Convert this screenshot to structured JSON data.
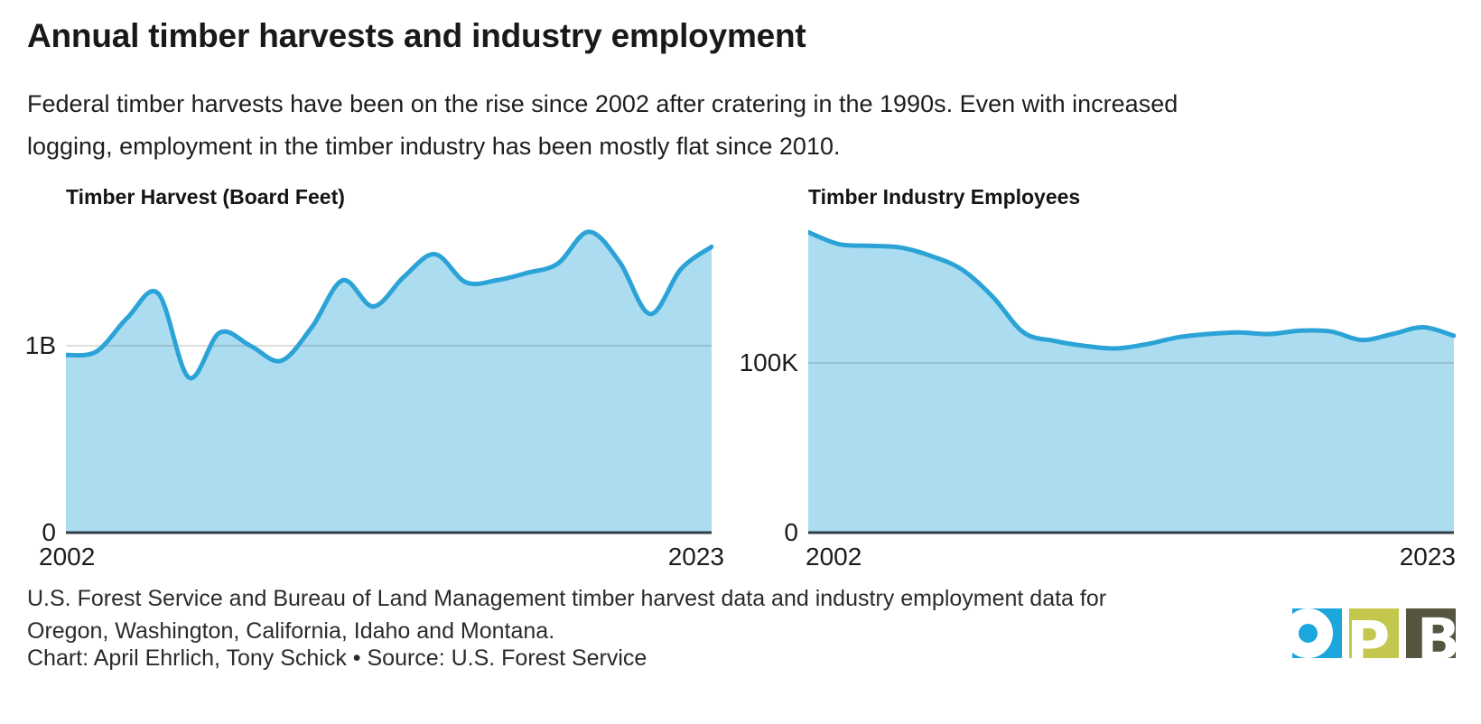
{
  "header": {
    "title": "Annual timber harvests and industry employment",
    "description_line1": "Federal timber harvests have been on the rise since 2002 after cratering in the 1990s. Even with increased",
    "description_line2": "logging, employment in the timber industry has been mostly flat since 2010."
  },
  "colors": {
    "line": "#2CA3D7",
    "fill": "#ABDCF0",
    "grid": "rgba(0,0,0,0.16)",
    "axis": "#333F48",
    "logo_blue": "#1BA7DC",
    "logo_olive": "#C3C74D",
    "logo_dark": "#555540"
  },
  "chart_data": [
    {
      "type": "area",
      "title": "Timber Harvest (Board Feet)",
      "unit": "billion board feet",
      "x_range": [
        2002,
        2023
      ],
      "x_label_left": "2002",
      "x_label_right": "2023",
      "y_grid_label": "1B",
      "y_grid_value": 1.0,
      "y_zero_label": "0",
      "grid_on": true,
      "legend": "none",
      "years": [
        2002,
        2003,
        2004,
        2005,
        2006,
        2007,
        2008,
        2009,
        2010,
        2011,
        2012,
        2013,
        2014,
        2015,
        2016,
        2017,
        2018,
        2019,
        2020,
        2021,
        2022,
        2023
      ],
      "values": [
        0.95,
        0.97,
        1.15,
        1.28,
        0.83,
        1.07,
        1.0,
        0.92,
        1.1,
        1.35,
        1.21,
        1.37,
        1.49,
        1.34,
        1.35,
        1.39,
        1.44,
        1.61,
        1.45,
        1.17,
        1.41,
        1.53
      ]
    },
    {
      "type": "area",
      "title": "Timber Industry Employees",
      "unit": "thousand employees",
      "x_range": [
        2002,
        2023
      ],
      "x_label_left": "2002",
      "x_label_right": "2023",
      "y_grid_label": "100K",
      "y_grid_value": 100,
      "y_zero_label": "0",
      "grid_on": true,
      "legend": "none",
      "years": [
        2002,
        2003,
        2004,
        2005,
        2006,
        2007,
        2008,
        2009,
        2010,
        2011,
        2012,
        2013,
        2014,
        2015,
        2016,
        2017,
        2018,
        2019,
        2020,
        2021,
        2022,
        2023
      ],
      "values": [
        177,
        170,
        169,
        168,
        163,
        155,
        139,
        118,
        113,
        110,
        108.5,
        111,
        115,
        117,
        118,
        117,
        119,
        118.5,
        113.5,
        117,
        121,
        116
      ]
    }
  ],
  "footer": {
    "notes_line1": "U.S. Forest Service and Bureau of Land Management timber harvest data and industry employment data for",
    "notes_line2": "Oregon, Washington, California, Idaho and Montana.",
    "credit": "Chart: April Ehrlich, Tony Schick • Source: U.S. Forest Service",
    "logo_letter_o": "O",
    "logo_letter_p": "P",
    "logo_letter_b": "B"
  }
}
